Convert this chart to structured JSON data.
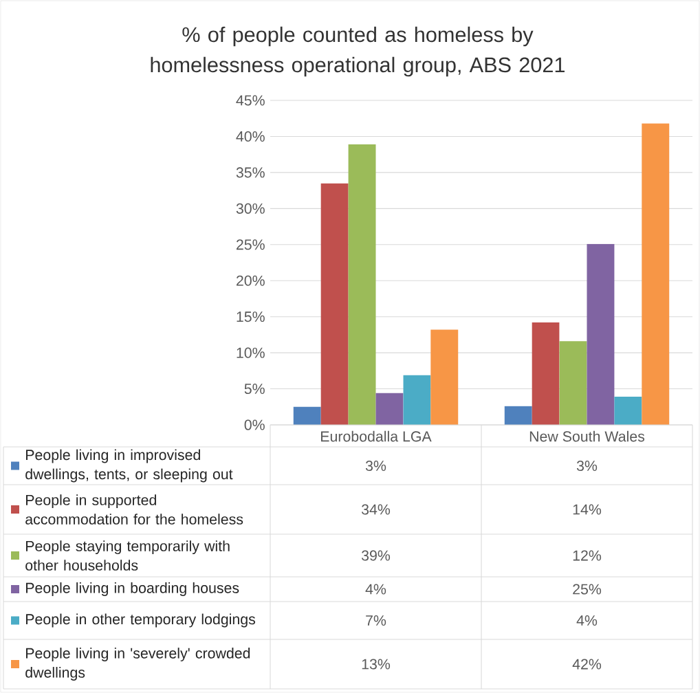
{
  "chart_data": {
    "type": "bar",
    "title": "% of people counted as homeless by homelessness operational group, ABS 2021",
    "categories": [
      "Eurobodalla LGA",
      "New South Wales"
    ],
    "series": [
      {
        "name": "People living in improvised dwellings, tents, or sleeping out",
        "color": "#4f81bd",
        "values": [
          2.5,
          2.6
        ],
        "value_labels": [
          "3%",
          "3%"
        ]
      },
      {
        "name": "People in supported accommodation for the homeless",
        "color": "#c0504d",
        "values": [
          33.5,
          14.2
        ],
        "value_labels": [
          "34%",
          "14%"
        ]
      },
      {
        "name": "People staying temporarily with other households",
        "color": "#9bbb59",
        "values": [
          38.9,
          11.6
        ],
        "value_labels": [
          "39%",
          "12%"
        ]
      },
      {
        "name": "People living in boarding houses",
        "color": "#8064a2",
        "values": [
          4.4,
          25.1
        ],
        "value_labels": [
          "4%",
          "25%"
        ]
      },
      {
        "name": "People in other temporary lodgings",
        "color": "#4bacc6",
        "values": [
          6.9,
          3.9
        ],
        "value_labels": [
          "7%",
          "4%"
        ]
      },
      {
        "name": "People living in 'severely' crowded dwellings",
        "color": "#f79646",
        "values": [
          13.2,
          41.8
        ],
        "value_labels": [
          "13%",
          "42%"
        ]
      }
    ],
    "ylim": [
      0,
      45
    ],
    "yticks": [
      {
        "value": 0,
        "label": "0%"
      },
      {
        "value": 5,
        "label": "5%"
      },
      {
        "value": 10,
        "label": "10%"
      },
      {
        "value": 15,
        "label": "15%"
      },
      {
        "value": 20,
        "label": "20%"
      },
      {
        "value": 25,
        "label": "25%"
      },
      {
        "value": 30,
        "label": "30%"
      },
      {
        "value": 35,
        "label": "35%"
      },
      {
        "value": 40,
        "label": "40%"
      },
      {
        "value": 45,
        "label": "45%"
      }
    ],
    "grid": "y",
    "legend": "bottom"
  }
}
